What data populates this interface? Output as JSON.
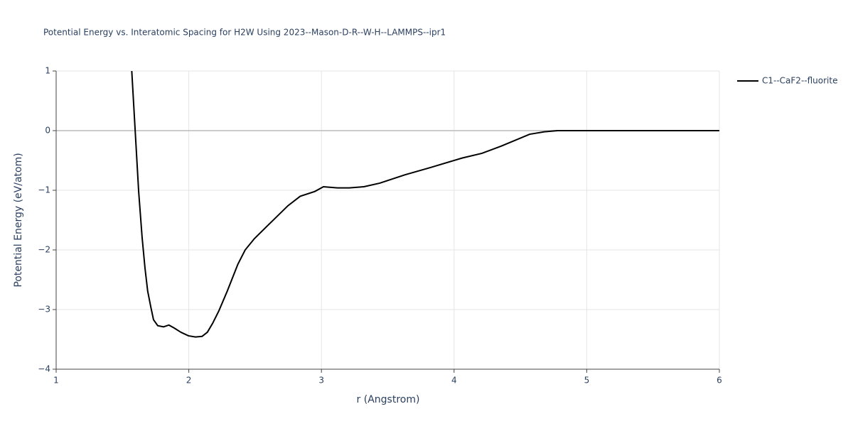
{
  "chart_data": {
    "type": "line",
    "title": "Potential Energy vs. Interatomic Spacing for H2W Using 2023--Mason-D-R--W-H--LAMMPS--ipr1",
    "x_label": "r (Angstrom)",
    "y_label": "Potential Energy (eV/atom)",
    "xlim": [
      1,
      6
    ],
    "ylim": [
      -4,
      1
    ],
    "xticks": [
      1,
      2,
      3,
      4,
      5,
      6
    ],
    "yticks": [
      {
        "value": -4,
        "label": "−4"
      },
      {
        "value": -3,
        "label": "−3"
      },
      {
        "value": -2,
        "label": "−2"
      },
      {
        "value": -1,
        "label": "−1"
      },
      0,
      1
    ],
    "grid": true,
    "legend": "right",
    "series": [
      {
        "name": "C1--CaF2--fluorite",
        "color": "#000000",
        "x": [
          1.57,
          1.622,
          1.648,
          1.67,
          1.69,
          1.713,
          1.734,
          1.766,
          1.81,
          1.85,
          1.89,
          1.94,
          1.997,
          2.05,
          2.1,
          2.14,
          2.18,
          2.227,
          2.29,
          2.37,
          2.425,
          2.495,
          2.6,
          2.747,
          2.84,
          2.95,
          3.015,
          3.12,
          3.21,
          3.32,
          3.44,
          3.63,
          3.82,
          4.06,
          4.21,
          4.355,
          4.57,
          4.68,
          4.78,
          6
        ],
        "values": [
          1.0,
          -1.02,
          -1.79,
          -2.31,
          -2.69,
          -2.95,
          -3.17,
          -3.27,
          -3.29,
          -3.26,
          -3.31,
          -3.38,
          -3.44,
          -3.46,
          -3.45,
          -3.38,
          -3.23,
          -3.02,
          -2.69,
          -2.24,
          -2.0,
          -1.81,
          -1.58,
          -1.26,
          -1.1,
          -1.02,
          -0.94,
          -0.96,
          -0.96,
          -0.94,
          -0.88,
          -0.74,
          -0.62,
          -0.46,
          -0.38,
          -0.26,
          -0.06,
          -0.02,
          0,
          0
        ]
      }
    ]
  }
}
